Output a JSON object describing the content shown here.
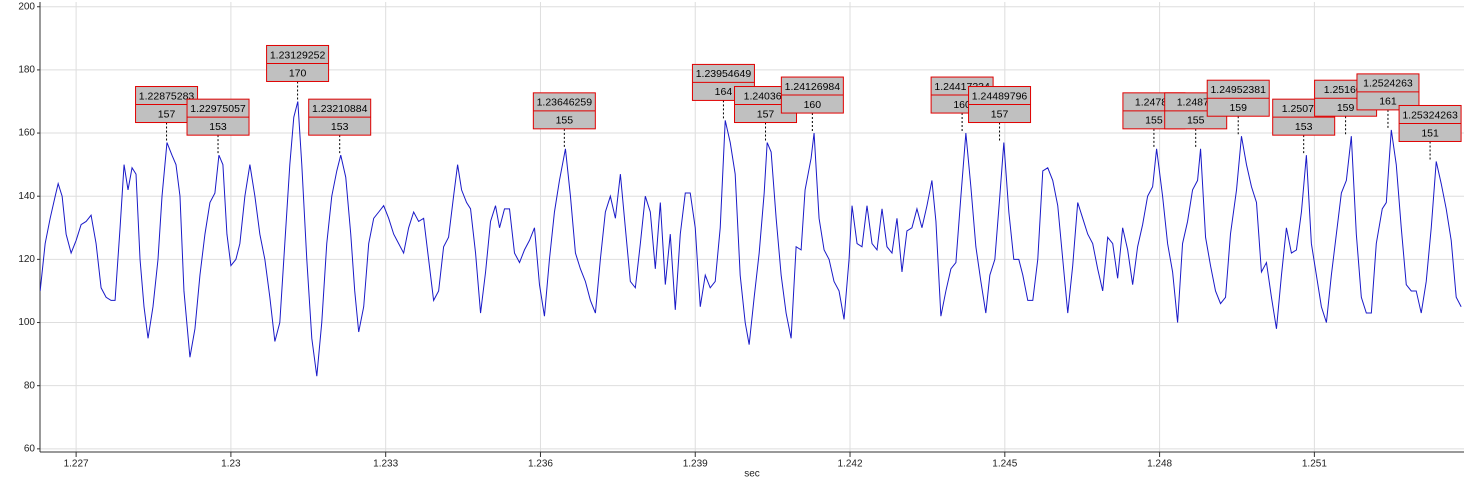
{
  "chart_data": {
    "type": "line",
    "x_label": "sec",
    "color": "#1a1ac8",
    "grid": true,
    "xlim": [
      1.2263,
      1.2539
    ],
    "ylim": [
      59,
      201.5
    ],
    "xticks": [
      1.227,
      1.23,
      1.233,
      1.236,
      1.239,
      1.242,
      1.245,
      1.248,
      1.251
    ],
    "yticks": [
      60,
      80,
      100,
      120,
      140,
      160,
      180,
      200
    ],
    "x": [
      1.226303,
      1.2264,
      1.226497,
      1.226594,
      1.226652,
      1.226729,
      1.226806,
      1.226903,
      1.227,
      1.227097,
      1.227194,
      1.22729,
      1.227387,
      1.227484,
      1.227581,
      1.227677,
      1.227755,
      1.227852,
      1.227929,
      1.228006,
      1.228084,
      1.228161,
      1.228239,
      1.228316,
      1.228394,
      1.22849,
      1.228587,
      1.228665,
      1.228761,
      1.228858,
      1.228936,
      1.229013,
      1.22909,
      1.229206,
      1.229303,
      1.2294,
      1.229497,
      1.229594,
      1.22969,
      1.229768,
      1.229845,
      1.229923,
      1.23,
      1.230097,
      1.230174,
      1.230271,
      1.230368,
      1.230465,
      1.230561,
      1.230658,
      1.230755,
      1.230852,
      1.230948,
      1.231045,
      1.231142,
      1.231219,
      1.231297,
      1.231374,
      1.231471,
      1.231568,
      1.231665,
      1.231761,
      1.231858,
      1.231955,
      1.232052,
      1.232129,
      1.232226,
      1.232323,
      1.2324,
      1.232477,
      1.232574,
      1.232671,
      1.232768,
      1.232865,
      1.232961,
      1.233058,
      1.233155,
      1.233252,
      1.233348,
      1.233445,
      1.233542,
      1.233639,
      1.233736,
      1.233832,
      1.233929,
      1.234026,
      1.234123,
      1.234219,
      1.234316,
      1.234394,
      1.234471,
      1.234568,
      1.234645,
      1.234742,
      1.234839,
      1.234936,
      1.235032,
      1.235129,
      1.235207,
      1.235303,
      1.2354,
      1.235497,
      1.235594,
      1.23569,
      1.235787,
      1.235884,
      1.235981,
      1.236077,
      1.236174,
      1.236271,
      1.236368,
      1.236484,
      1.236581,
      1.236678,
      1.236774,
      1.236871,
      1.236968,
      1.237065,
      1.237161,
      1.237258,
      1.237355,
      1.237452,
      1.237549,
      1.237645,
      1.237742,
      1.237839,
      1.237936,
      1.238032,
      1.238129,
      1.238226,
      1.238323,
      1.23842,
      1.238516,
      1.238613,
      1.23871,
      1.238807,
      1.238903,
      1.239,
      1.239097,
      1.239194,
      1.23929,
      1.239387,
      1.239484,
      1.239581,
      1.239678,
      1.239774,
      1.239871,
      1.239968,
      1.240045,
      1.240142,
      1.240239,
      1.240336,
      1.240394,
      1.240471,
      1.240568,
      1.240665,
      1.240761,
      1.240858,
      1.240955,
      1.241052,
      1.241129,
      1.241245,
      1.241303,
      1.2414,
      1.241497,
      1.241594,
      1.24169,
      1.241787,
      1.241884,
      1.241981,
      1.242039,
      1.242136,
      1.242232,
      1.242329,
      1.242426,
      1.242523,
      1.24262,
      1.242716,
      1.242813,
      1.24291,
      1.243007,
      1.243103,
      1.2432,
      1.243297,
      1.243394,
      1.243491,
      1.243587,
      1.243665,
      1.243761,
      1.243858,
      1.243955,
      1.244052,
      1.244149,
      1.244245,
      1.244342,
      1.244439,
      1.244536,
      1.244632,
      1.24471,
      1.244807,
      1.244903,
      1.244981,
      1.245078,
      1.245174,
      1.245271,
      1.245349,
      1.245445,
      1.245542,
      1.245639,
      1.245736,
      1.245832,
      1.245929,
      1.246026,
      1.246123,
      1.24622,
      1.246316,
      1.246413,
      1.24651,
      1.246607,
      1.246703,
      1.2468,
      1.246897,
      1.246994,
      1.247091,
      1.247187,
      1.247284,
      1.247381,
      1.247478,
      1.247574,
      1.247671,
      1.247768,
      1.247865,
      1.247942,
      1.248058,
      1.248155,
      1.248252,
      1.248349,
      1.248445,
      1.248542,
      1.248639,
      1.248736,
      1.248794,
      1.248891,
      1.248987,
      1.249084,
      1.249181,
      1.249278,
      1.249374,
      1.249491,
      1.249587,
      1.249684,
      1.249781,
      1.249878,
      1.249974,
      1.250071,
      1.250168,
      1.250265,
      1.250362,
      1.250458,
      1.250555,
      1.250652,
      1.250749,
      1.250845,
      1.250942,
      1.251039,
      1.251136,
      1.251233,
      1.251329,
      1.251426,
      1.251523,
      1.25162,
      1.251716,
      1.251813,
      1.25191,
      1.252007,
      1.252104,
      1.2522,
      1.252316,
      1.252394,
      1.252491,
      1.252587,
      1.252684,
      1.252781,
      1.252878,
      1.252974,
      1.253071,
      1.253168,
      1.253265,
      1.253362,
      1.253458,
      1.253555,
      1.253652,
      1.253749,
      1.253845
    ],
    "values": [
      110,
      125,
      133,
      140,
      144,
      140,
      128,
      122,
      126,
      131,
      132,
      134,
      125,
      111,
      108,
      107,
      107,
      130,
      150,
      142,
      149,
      147,
      120,
      105,
      95,
      105,
      120,
      140,
      157,
      153,
      150,
      140,
      110,
      89,
      98,
      115,
      128,
      138,
      141,
      153,
      150,
      128,
      118,
      120,
      125,
      140,
      150,
      140,
      128,
      120,
      108,
      94,
      100,
      125,
      150,
      165,
      170,
      150,
      120,
      95,
      83,
      100,
      125,
      140,
      148,
      153,
      146,
      128,
      110,
      97,
      105,
      125,
      133,
      135,
      137,
      133,
      128,
      125,
      122,
      130,
      135,
      132,
      133,
      120,
      107,
      110,
      124,
      127,
      140,
      150,
      142,
      138,
      136,
      122,
      103,
      116,
      132,
      137,
      130,
      136,
      136,
      122,
      119,
      123,
      126,
      130,
      112,
      102,
      120,
      135,
      145,
      155,
      140,
      122,
      117,
      113,
      107,
      103,
      120,
      135,
      140,
      133,
      147,
      130,
      113,
      111,
      125,
      140,
      135,
      117,
      138,
      112,
      128,
      104,
      128,
      141,
      141,
      130,
      105,
      115,
      111,
      113,
      130,
      164,
      157,
      147,
      115,
      100,
      93,
      108,
      122,
      141,
      157,
      154,
      133,
      115,
      103,
      95,
      124,
      123,
      142,
      152,
      160,
      133,
      123,
      120,
      113,
      110,
      101,
      120,
      137,
      125,
      124,
      137,
      125,
      123,
      136,
      124,
      122,
      133,
      116,
      129,
      130,
      136,
      130,
      137,
      145,
      132,
      102,
      110,
      117,
      119,
      140,
      160,
      143,
      124,
      113,
      103,
      115,
      120,
      140,
      157,
      135,
      120,
      120,
      115,
      107,
      107,
      120,
      148,
      149,
      145,
      137,
      120,
      103,
      118,
      138,
      133,
      128,
      125,
      117,
      110,
      127,
      125,
      114,
      130,
      123,
      112,
      124,
      131,
      140,
      143,
      155,
      140,
      125,
      116,
      100,
      125,
      132,
      142,
      145,
      155,
      127,
      118,
      110,
      106,
      108,
      128,
      142,
      159,
      150,
      143,
      138,
      116,
      119,
      108,
      98,
      115,
      130,
      122,
      123,
      135,
      153,
      125,
      115,
      105,
      100,
      115,
      128,
      141,
      145,
      159,
      128,
      108,
      103,
      103,
      125,
      136,
      138,
      161,
      150,
      130,
      112,
      110,
      110,
      103,
      113,
      130,
      151,
      144,
      136,
      126,
      108,
      105
    ],
    "annotations": [
      {
        "x": 1.22875283,
        "y": 157
      },
      {
        "x": 1.22975057,
        "y": 153
      },
      {
        "x": 1.23129252,
        "y": 170
      },
      {
        "x": 1.23210884,
        "y": 153
      },
      {
        "x": 1.23646259,
        "y": 155
      },
      {
        "x": 1.23954649,
        "y": 164
      },
      {
        "x": 1.240362,
        "y": 157
      },
      {
        "x": 1.24126984,
        "y": 160
      },
      {
        "x": 1.24417234,
        "y": 160
      },
      {
        "x": 1.24489796,
        "y": 157
      },
      {
        "x": 1.24789,
        "y": 155
      },
      {
        "x": 1.2487,
        "x_label": "1.24870",
        "y": 155
      },
      {
        "x": 1.24952381,
        "y": 159
      },
      {
        "x": 1.250793,
        "y": 153
      },
      {
        "x": 1.251605,
        "y": 159
      },
      {
        "x": 1.2524263,
        "y": 161
      },
      {
        "x": 1.25324263,
        "y": 151
      }
    ]
  }
}
